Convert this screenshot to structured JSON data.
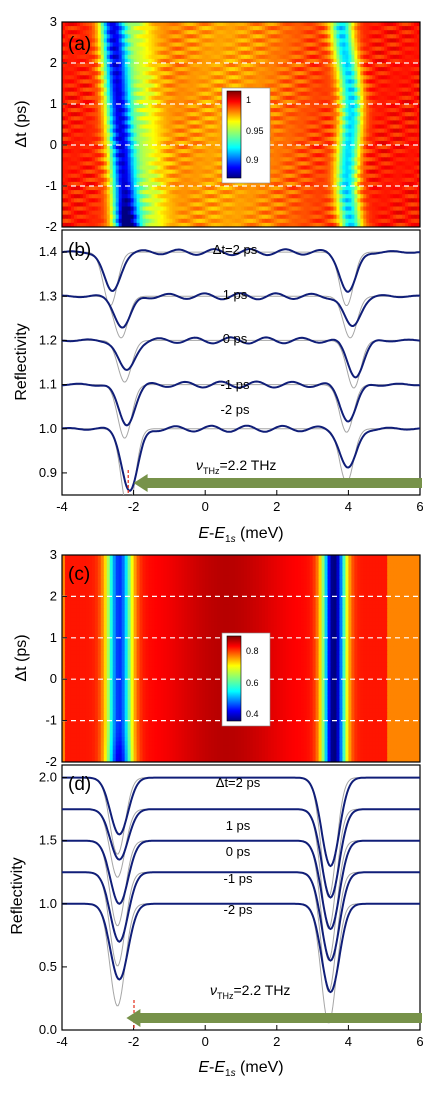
{
  "figure": {
    "panels": [
      {
        "id": "a",
        "tag": "(a)",
        "type": "heatmap",
        "ylabel": "Δt (ps)",
        "yticks": [
          "3",
          "2",
          "1",
          "0",
          "-1",
          "-2"
        ],
        "colorbar": {
          "labels": [
            "1",
            "0.95",
            "0.9"
          ],
          "range": [
            0.88,
            1.02
          ]
        }
      },
      {
        "id": "b",
        "tag": "(b)",
        "type": "line",
        "ylabel": "Reflectivity",
        "yticks": [
          "1.4",
          "1.3",
          "1.2",
          "1.1",
          "1.0",
          "0.9"
        ],
        "xticks": [
          "-4",
          "-2",
          "0",
          "2",
          "4",
          "6"
        ],
        "xlabel": "E-E1s (meV)",
        "curve_labels": [
          "Δt=2 ps",
          "1 ps",
          "0 ps",
          "-1 ps",
          "-2 ps"
        ],
        "thz_label": "νTHz=2.2 THz"
      },
      {
        "id": "c",
        "tag": "(c)",
        "type": "heatmap",
        "ylabel": "Δt (ps)",
        "yticks": [
          "3",
          "2",
          "1",
          "0",
          "-1",
          "-2"
        ],
        "colorbar": {
          "labels": [
            "0.8",
            "0.6",
            "0.4"
          ],
          "range": [
            0.35,
            0.9
          ]
        }
      },
      {
        "id": "d",
        "tag": "(d)",
        "type": "line",
        "ylabel": "Reflectivity",
        "yticks": [
          "2.0",
          "1.5",
          "1.0",
          "0.5",
          "0.0"
        ],
        "xticks": [
          "-4",
          "-2",
          "0",
          "2",
          "4",
          "6"
        ],
        "xlabel": "E-E1s (meV)",
        "curve_labels": [
          "Δt=2 ps",
          "1 ps",
          "0 ps",
          "-1 ps",
          "-2 ps"
        ],
        "thz_label": "νTHz=2.2 THz"
      }
    ]
  },
  "chart_data": [
    {
      "type": "heatmap",
      "panel": "(a)",
      "xlim": [
        -4,
        6
      ],
      "ylim": [
        -2,
        3
      ],
      "ylabel": "Δt (ps)",
      "colorbar_ticks": [
        1,
        0.95,
        0.9
      ],
      "dashed_lines_dt": [
        2,
        1,
        0,
        -1
      ],
      "resonances": [
        {
          "center_at_dt_-2": -2.2,
          "center_at_dt_3": -2.6
        },
        {
          "center_at_dt_-2": 4.1,
          "center_at_dt_3": 3.9
        }
      ]
    },
    {
      "type": "line",
      "panel": "(b)",
      "xlabel": "E-E1s (meV)",
      "ylabel": "Reflectivity",
      "xlim": [
        -4,
        6
      ],
      "ylim": [
        0.85,
        1.45
      ],
      "series": [
        {
          "name": "Δt=2 ps",
          "offset": 1.4,
          "dips": [
            [
              -2.6,
              0.09
            ],
            [
              4.0,
              0.09
            ]
          ]
        },
        {
          "name": "1 ps",
          "offset": 1.3,
          "dips": [
            [
              -2.3,
              0.07
            ],
            [
              4.1,
              0.07
            ]
          ]
        },
        {
          "name": "0 ps",
          "offset": 1.2,
          "dips": [
            [
              -2.2,
              0.07
            ],
            [
              4.2,
              0.08
            ]
          ]
        },
        {
          "name": "-1 ps",
          "offset": 1.1,
          "dips": [
            [
              -2.2,
              0.09
            ],
            [
              4.0,
              0.08
            ]
          ]
        },
        {
          "name": "-2 ps",
          "offset": 1.0,
          "dips": [
            [
              -2.1,
              0.14
            ],
            [
              4.0,
              0.09
            ]
          ]
        }
      ],
      "thz_frequency_THz": 2.2,
      "thz_marker_x": -2.0
    },
    {
      "type": "heatmap",
      "panel": "(c)",
      "xlim": [
        -4,
        6
      ],
      "ylim": [
        -2,
        3
      ],
      "ylabel": "Δt (ps)",
      "colorbar_ticks": [
        0.8,
        0.6,
        0.4
      ],
      "dashed_lines_dt": [
        2,
        1,
        0,
        -1
      ],
      "resonances": [
        {
          "center": -2.4
        },
        {
          "center": 3.6
        }
      ]
    },
    {
      "type": "line",
      "panel": "(d)",
      "xlabel": "E-E1s (meV)",
      "ylabel": "Reflectivity",
      "xlim": [
        -4,
        6
      ],
      "ylim": [
        0.0,
        2.1
      ],
      "series": [
        {
          "name": "Δt=2 ps",
          "offset": 2.0,
          "dips": [
            [
              -2.4,
              0.45
            ],
            [
              3.5,
              0.7
            ]
          ]
        },
        {
          "name": "1 ps",
          "offset": 1.75,
          "dips": [
            [
              -2.4,
              0.4
            ],
            [
              3.5,
              0.7
            ]
          ]
        },
        {
          "name": "0 ps",
          "offset": 1.5,
          "dips": [
            [
              -2.4,
              0.5
            ],
            [
              3.5,
              0.7
            ]
          ]
        },
        {
          "name": "-1 ps",
          "offset": 1.25,
          "dips": [
            [
              -2.4,
              0.55
            ],
            [
              3.5,
              0.7
            ]
          ]
        },
        {
          "name": "-2 ps",
          "offset": 1.0,
          "dips": [
            [
              -2.4,
              0.6
            ],
            [
              3.5,
              0.7
            ]
          ]
        }
      ],
      "thz_frequency_THz": 2.2,
      "thz_marker_x": -2.2
    }
  ]
}
